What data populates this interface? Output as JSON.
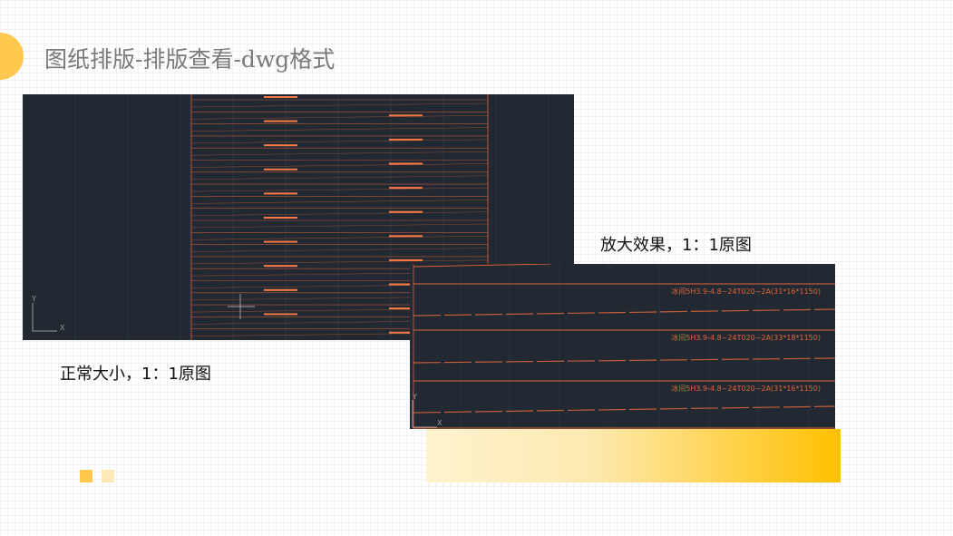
{
  "slide": {
    "title": "图纸排版-排版查看-dwg格式"
  },
  "left_view": {
    "caption": "正常大小，1：1原图",
    "axis_y": "Y",
    "axis_x": "X"
  },
  "right_view": {
    "caption": "放大效果，1：1原图",
    "axis_y": "Y",
    "axis_x": "X",
    "labels": [
      "冰间5H3.9-4.8~24T020~2A(31*16*1150)",
      "冰间5H3.9-4.8~24T020~2A(33*18*1150)",
      "冰间5H3.9-4.8~24T020~2A(31*16*1150)"
    ]
  },
  "colors": {
    "accent": "#ffc94f",
    "cad_bg": "#222932",
    "cad_line": "#e2653a"
  }
}
